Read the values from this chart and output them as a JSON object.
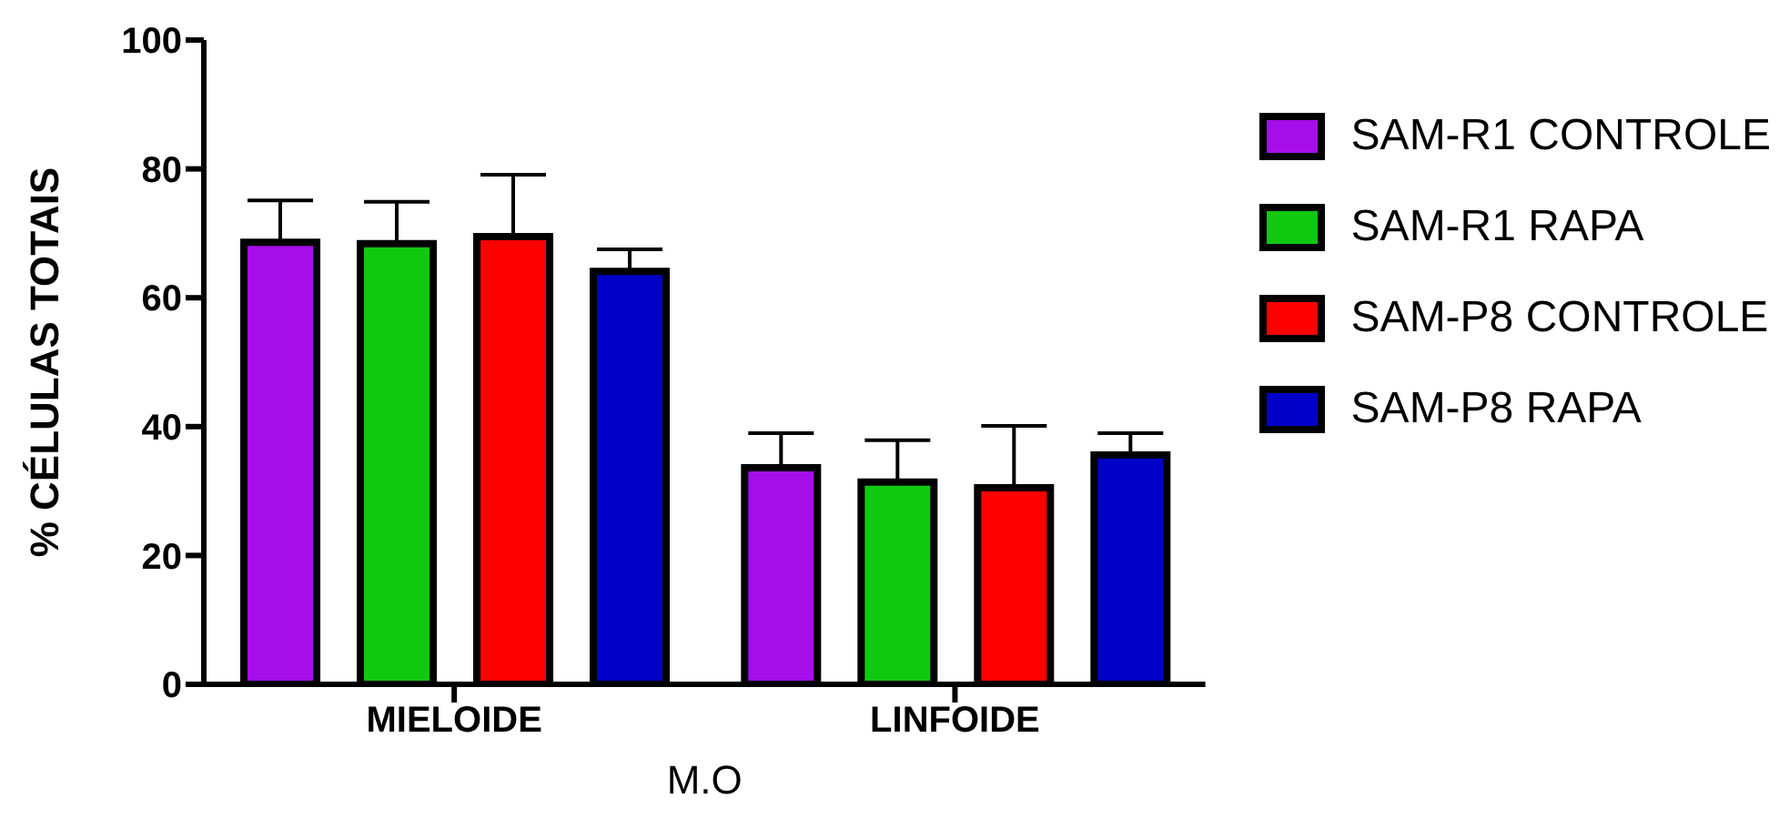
{
  "chart_data": {
    "type": "bar",
    "xlabel": "M.O",
    "ylabel": "% CÉLULAS TOTAIS",
    "categories": [
      "MIELOIDE",
      "LINFOIDE"
    ],
    "series": [
      {
        "name": "SAM-R1 CONTROLE",
        "color": "#a50ee8",
        "values": [
          68.6,
          33.6
        ],
        "errors": [
          [
            68.6,
            75.1
          ],
          [
            33.6,
            39.0
          ]
        ]
      },
      {
        "name": "SAM-R1 RAPA",
        "color": "#11c811",
        "values": [
          68.4,
          31.4
        ],
        "errors": [
          [
            68.4,
            74.9
          ],
          [
            31.4,
            37.9
          ]
        ]
      },
      {
        "name": "SAM-P8 CONTROLE",
        "color": "#ff0000",
        "values": [
          69.5,
          30.5
        ],
        "errors": [
          [
            69.5,
            79.1
          ],
          [
            30.5,
            40.1
          ]
        ]
      },
      {
        "name": "SAM-P8 RAPA",
        "color": "#0000c8",
        "values": [
          64.1,
          35.6
        ],
        "errors": [
          [
            64.1,
            67.5
          ],
          [
            35.6,
            39.0
          ]
        ]
      }
    ],
    "ylim": [
      0,
      100
    ],
    "yticks": [
      0,
      20,
      40,
      60,
      80,
      100
    ],
    "grid": false,
    "legend": "top right"
  }
}
